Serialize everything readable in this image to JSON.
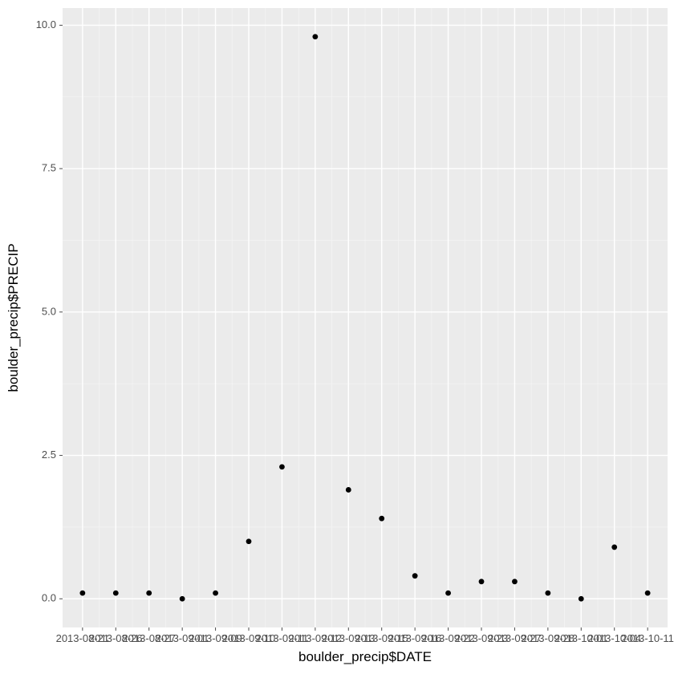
{
  "chart": {
    "type": "scatter",
    "xlabel": "boulder_precip$DATE",
    "ylabel": "boulder_precip$PRECIP",
    "panel_bg": "#ebebeb",
    "plot_bg": "#ffffff",
    "grid_major_color": "#ffffff",
    "grid_minor_color": "#f5f5f5",
    "point_color": "#000000",
    "tick_color": "#4d4d4d",
    "title_color": "#000000",
    "tick_fontsize": 13,
    "label_fontsize": 17,
    "point_radius": 3.4,
    "ylim": [
      -0.5,
      10.3
    ],
    "y_major_ticks": [
      0.0,
      2.5,
      5.0,
      7.5,
      10.0
    ],
    "y_minor_ticks": [
      1.25,
      3.75,
      6.25,
      8.75
    ],
    "y_tick_labels": [
      "0.0",
      "2.5",
      "5.0",
      "7.5",
      "10.0"
    ],
    "x_categories": [
      "2013-08-21",
      "2013-08-26",
      "2013-08-27",
      "2013-09-01",
      "2013-09-09",
      "2013-09-10",
      "2013-09-11",
      "2013-09-12",
      "2013-09-13",
      "2013-09-15",
      "2013-09-16",
      "2013-09-22",
      "2013-09-23",
      "2013-09-27",
      "2013-09-28",
      "2013-10-01",
      "2013-10-04",
      "2013-10-11"
    ],
    "y_values": [
      0.1,
      0.1,
      0.1,
      0.0,
      0.1,
      1.0,
      2.3,
      9.8,
      1.9,
      1.4,
      0.4,
      0.1,
      0.3,
      0.3,
      0.1,
      0.0,
      0.9,
      0.1
    ]
  }
}
